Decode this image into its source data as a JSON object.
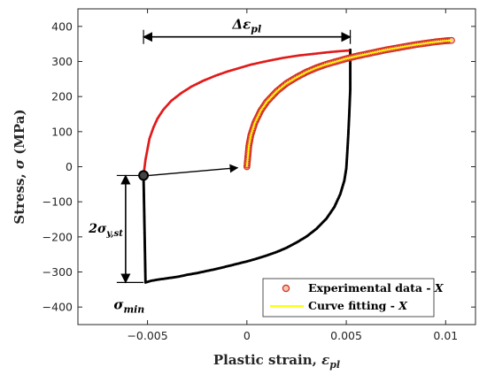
{
  "chart_data": {
    "type": "scatter",
    "xlabel_main": "Plastic strain, ",
    "xlabel_sym": "ε",
    "xlabel_sub": "pl",
    "ylabel_main": "Stress, ",
    "ylabel_sym": "σ",
    "ylabel_unit": " (MPa)",
    "xlim": [
      -0.0085,
      0.0115
    ],
    "ylim": [
      -450,
      450
    ],
    "xticks": [
      -0.005,
      0,
      0.005,
      0.01
    ],
    "xtick_labels": [
      "−0.005",
      "0",
      "0.005",
      "0.01"
    ],
    "yticks": [
      -400,
      -300,
      -200,
      -100,
      0,
      100,
      200,
      300,
      400
    ],
    "ytick_labels": [
      "−400",
      "−300",
      "−200",
      "−100",
      "0",
      "100",
      "200",
      "300",
      "400"
    ],
    "grid": false,
    "legend_position": "bottom-right",
    "legend": {
      "experimental": "Experimental data - ",
      "fitting": "Curve fitting - ",
      "italic_suffix": "X"
    },
    "annotations": {
      "delta_sym": "Δε",
      "delta_sub": "pl",
      "sigma_ystx": "2σ",
      "sigma_ystx_sub": "y,st",
      "sigma_min": "σ",
      "sigma_min_sub": "min"
    },
    "colors": {
      "experimental_face": "#f2c6b0",
      "experimental_edge": "#d42a1a",
      "fitting": "#ffff00",
      "unloading_branch": "#000000",
      "red_branch": "#e11a1a"
    },
    "series": [
      {
        "name": "Experimental data - X",
        "kind": "markers",
        "x": [
          0.0,
          0.0001,
          0.0002,
          0.0004,
          0.0007,
          0.001,
          0.0015,
          0.002,
          0.0025,
          0.003,
          0.0035,
          0.004,
          0.0045,
          0.005,
          0.0055,
          0.006,
          0.0065,
          0.007,
          0.0075,
          0.008,
          0.0085,
          0.009,
          0.0095,
          0.01,
          0.0103
        ],
        "y": [
          0,
          60,
          90,
          125,
          160,
          185,
          215,
          238,
          255,
          270,
          282,
          292,
          300,
          308,
          315,
          321,
          327,
          333,
          338,
          343,
          348,
          352,
          356,
          359,
          360
        ]
      },
      {
        "name": "Curve fitting - X",
        "kind": "line",
        "x": [
          0.0,
          0.0001,
          0.0002,
          0.0004,
          0.0007,
          0.001,
          0.0015,
          0.002,
          0.0025,
          0.003,
          0.0035,
          0.004,
          0.0045,
          0.005,
          0.0055,
          0.006,
          0.0065,
          0.007,
          0.0075,
          0.008,
          0.0085,
          0.009,
          0.0095,
          0.01,
          0.0103
        ],
        "y": [
          0,
          60,
          90,
          125,
          160,
          185,
          215,
          238,
          255,
          270,
          282,
          292,
          300,
          308,
          315,
          321,
          327,
          333,
          338,
          343,
          348,
          352,
          356,
          359,
          360
        ]
      },
      {
        "name": "",
        "kind": "dots",
        "x": [
          -0.0052,
          -0.0051,
          -0.0048,
          -0.0045,
          -0.004,
          -0.0035,
          -0.003,
          -0.0025,
          -0.002,
          -0.0015,
          -0.001,
          -0.0005,
          0.0,
          0.0005,
          0.001,
          0.0015,
          0.002,
          0.0025,
          0.003,
          0.0035,
          0.004,
          0.0044,
          0.0047,
          0.0049,
          0.005,
          0.00505,
          0.0051,
          0.00515,
          0.0052,
          0.0052,
          0.0052,
          0.0052
        ],
        "y": [
          -25,
          -330,
          -325,
          -322,
          -318,
          -314,
          -308,
          -303,
          -297,
          -291,
          -284,
          -277,
          -270,
          -262,
          -253,
          -243,
          -231,
          -216,
          -199,
          -177,
          -148,
          -115,
          -78,
          -40,
          -5,
          40,
          90,
          150,
          220,
          270,
          300,
          333
        ]
      },
      {
        "name": "",
        "kind": "dots",
        "x": [
          -0.0052,
          -0.0051,
          -0.005,
          -0.0049,
          -0.0047,
          -0.0045,
          -0.0042,
          -0.0038,
          -0.0033,
          -0.0028,
          -0.0022,
          -0.0016,
          -0.001,
          -0.0004,
          0.0002,
          0.001,
          0.0018,
          0.0026,
          0.0034,
          0.0042,
          0.0048,
          0.0051
        ],
        "y": [
          -25,
          20,
          50,
          80,
          112,
          137,
          163,
          188,
          210,
          228,
          245,
          259,
          271,
          281,
          291,
          301,
          310,
          317,
          322,
          327,
          330,
          331
        ]
      }
    ],
    "special_points": {
      "start_marker": {
        "x": -0.0052,
        "y": -25
      },
      "arrow_target": {
        "x": -0.0002,
        "y": -3
      },
      "delta_left": {
        "x": -0.0052,
        "y": 370
      },
      "delta_right": {
        "x": 0.0052,
        "y": 370
      },
      "sigma_top": {
        "x": -0.0061,
        "y": -25
      },
      "sigma_bottom": {
        "x": -0.0061,
        "y": -330
      }
    }
  }
}
